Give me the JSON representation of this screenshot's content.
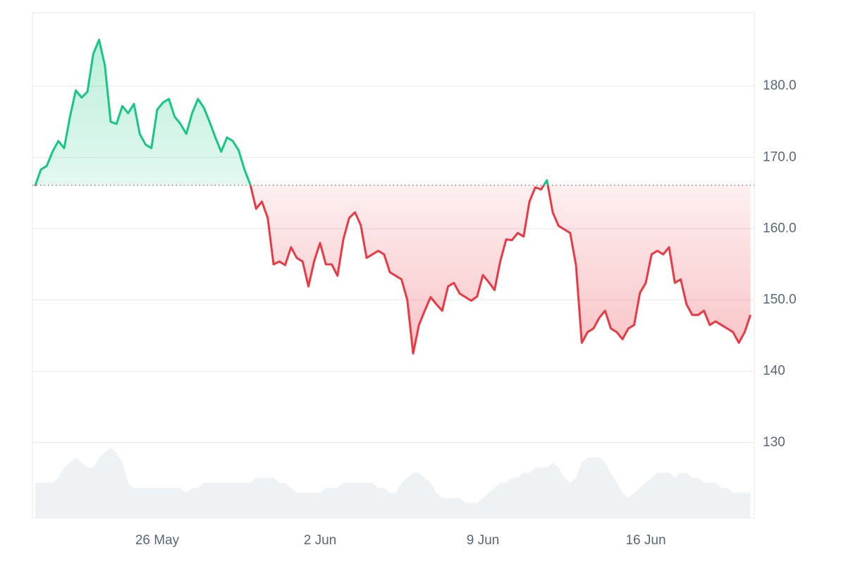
{
  "chart_data": {
    "type": "line",
    "categories": [
      null,
      null,
      null,
      null,
      null,
      null,
      null,
      null,
      null,
      null,
      null,
      null,
      null,
      null,
      null,
      null,
      null,
      null,
      null,
      null,
      null,
      "26 May",
      null,
      null,
      null,
      null,
      null,
      null,
      null,
      null,
      null,
      null,
      null,
      null,
      null,
      null,
      null,
      null,
      null,
      null,
      null,
      null,
      null,
      null,
      null,
      null,
      null,
      null,
      null,
      "2 Jun",
      null,
      null,
      null,
      null,
      null,
      null,
      null,
      null,
      null,
      null,
      null,
      null,
      null,
      null,
      null,
      null,
      null,
      null,
      null,
      null,
      null,
      null,
      null,
      null,
      null,
      null,
      null,
      "9 Jun",
      null,
      null,
      null,
      null,
      null,
      null,
      null,
      null,
      null,
      null,
      null,
      null,
      null,
      null,
      null,
      null,
      null,
      null,
      null,
      null,
      null,
      null,
      null,
      null,
      null,
      null,
      null,
      "16 Jun",
      null,
      null,
      null,
      null,
      null,
      null,
      null,
      null,
      null,
      null,
      null,
      null,
      null,
      null,
      null,
      null,
      null,
      null
    ],
    "values": [
      166.0,
      168.3,
      168.8,
      170.8,
      172.3,
      171.3,
      175.7,
      179.4,
      178.4,
      179.2,
      184.5,
      186.5,
      182.9,
      175.0,
      174.7,
      177.2,
      176.2,
      177.5,
      173.3,
      171.8,
      171.3,
      176.7,
      177.7,
      178.2,
      175.7,
      174.7,
      173.3,
      176.2,
      178.2,
      177.0,
      175.0,
      172.8,
      170.8,
      172.8,
      172.3,
      171.0,
      168.3,
      166.2,
      162.8,
      163.8,
      161.5,
      155.0,
      155.4,
      154.9,
      157.4,
      155.9,
      155.4,
      151.9,
      155.5,
      158.0,
      155.0,
      155.0,
      153.4,
      158.5,
      161.5,
      162.3,
      160.5,
      155.9,
      156.4,
      156.9,
      156.4,
      153.9,
      153.4,
      152.9,
      150.0,
      142.5,
      146.5,
      148.5,
      150.4,
      149.4,
      148.5,
      151.9,
      152.4,
      150.9,
      150.4,
      149.9,
      150.5,
      153.5,
      152.5,
      151.4,
      155.5,
      158.5,
      158.4,
      159.4,
      158.9,
      163.8,
      165.8,
      165.5,
      166.8,
      162.3,
      160.4,
      159.9,
      159.4,
      154.9,
      144.0,
      145.5,
      146.0,
      147.5,
      148.5,
      146.0,
      145.5,
      144.5,
      146.0,
      146.5,
      151.0,
      152.4,
      156.4,
      156.9,
      156.4,
      157.4,
      152.4,
      152.9,
      149.4,
      147.9,
      147.9,
      148.5,
      146.5,
      147.0,
      146.5,
      146.0,
      145.5,
      144.0,
      145.5,
      147.9
    ],
    "baseline": 166.1,
    "color_above": "#16c784",
    "color_below": "#ea3943",
    "volume_values": [
      7,
      7,
      7,
      7,
      8,
      10,
      11,
      12,
      11,
      10,
      10,
      12,
      13,
      14,
      13,
      11,
      7,
      6,
      6,
      6,
      6,
      6,
      6,
      6,
      6,
      6,
      5,
      6,
      6,
      7,
      7,
      7,
      7,
      7,
      7,
      7,
      7,
      7,
      8,
      8,
      8,
      8,
      7,
      7,
      6,
      5,
      5,
      5,
      5,
      5,
      6,
      6,
      6,
      7,
      7,
      7,
      7,
      7,
      7,
      6,
      6,
      5,
      5,
      7,
      8,
      9,
      9,
      8,
      7,
      5,
      4,
      4,
      4,
      4,
      3,
      3,
      3,
      4,
      5,
      6,
      7,
      7,
      8,
      8,
      9,
      9,
      10,
      10,
      10,
      11,
      10,
      8,
      7,
      8,
      11,
      12,
      12,
      12,
      11,
      9,
      7,
      5,
      4,
      5,
      6,
      7,
      8,
      9,
      9,
      9,
      8,
      9,
      9,
      8,
      8,
      7,
      7,
      7,
      6,
      6,
      5,
      5,
      5,
      5
    ],
    "volume_color": "#eff2f5",
    "y2lim": [
      0,
      100
    ],
    "ylim": [
      119.4,
      190.3
    ],
    "yticks": [
      {
        "value": 130,
        "label": "130"
      },
      {
        "value": 140,
        "label": "140"
      },
      {
        "value": 150,
        "label": "150.0"
      },
      {
        "value": 160,
        "label": "160.0"
      },
      {
        "value": 170,
        "label": "170.0"
      },
      {
        "value": 180,
        "label": "180.0"
      }
    ],
    "grid": true
  }
}
